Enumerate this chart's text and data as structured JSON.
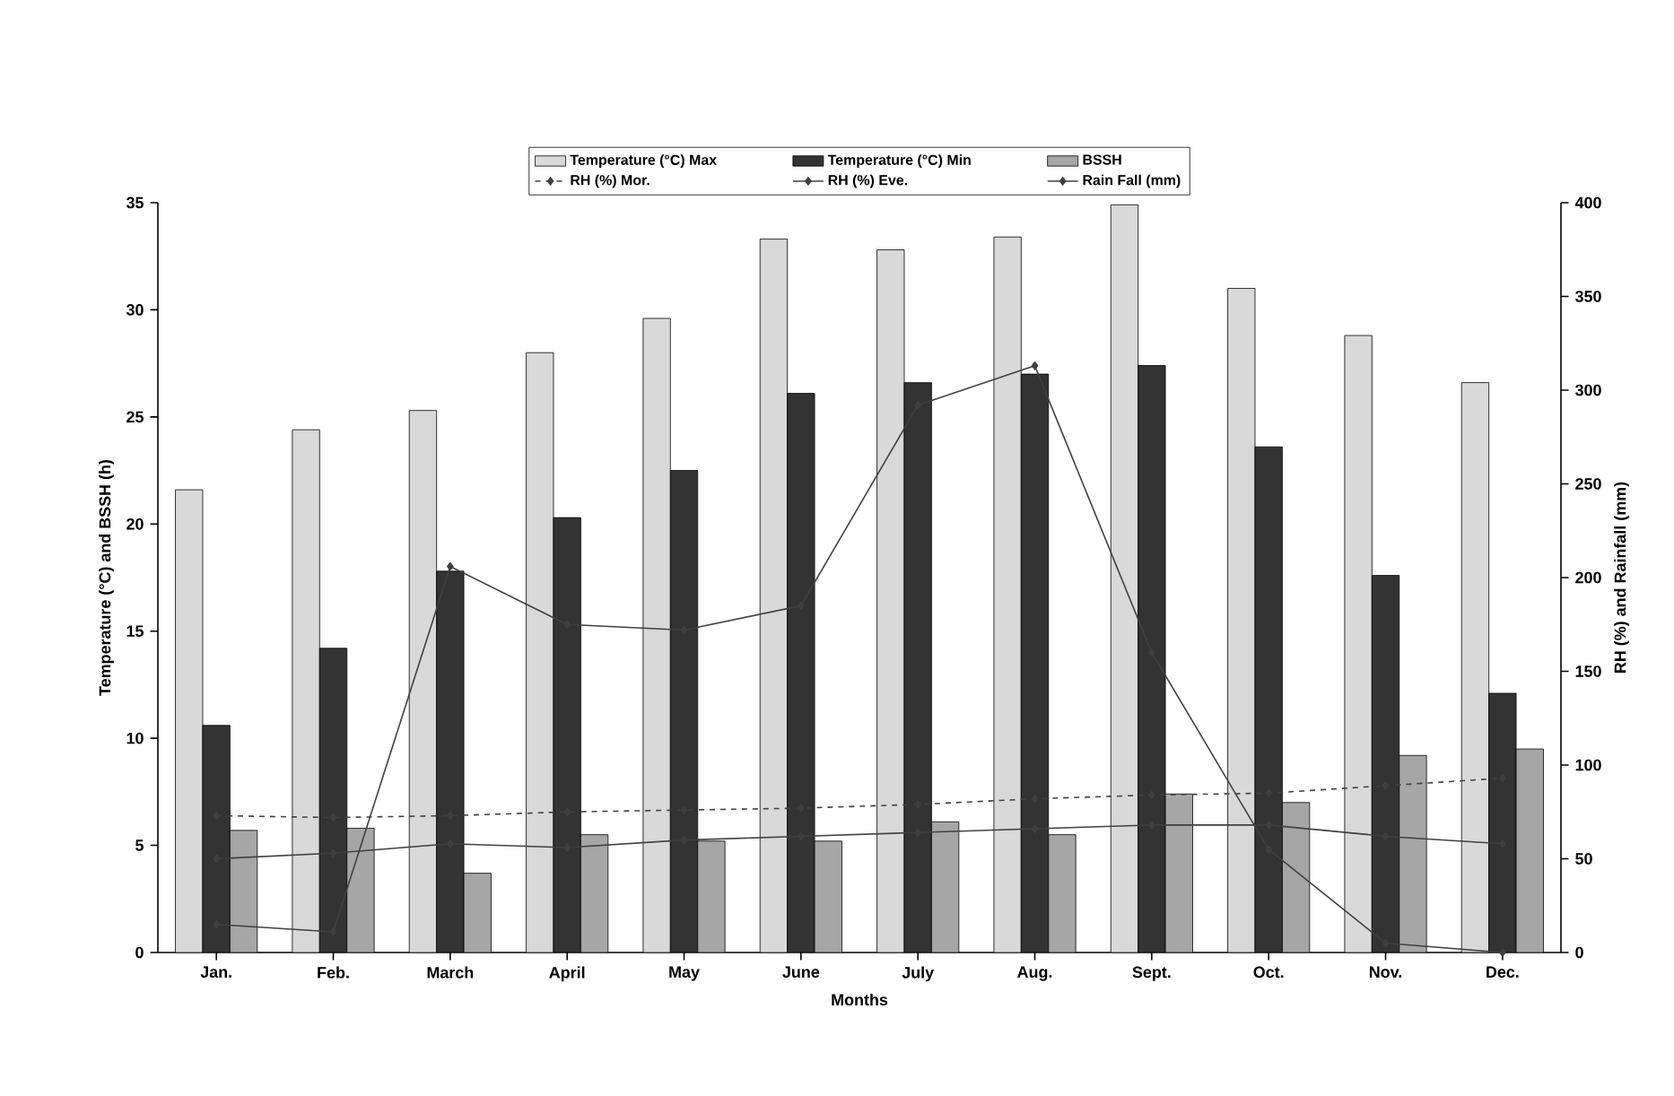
{
  "chart_data": {
    "type": "bar",
    "xlabel": "Months",
    "ylabel": "Temperature (°C) and BSSH (h)",
    "y2label": "RH (%) and Rainfall (mm)",
    "categories": [
      "Jan.",
      "Feb.",
      "March",
      "April",
      "May",
      "June",
      "July",
      "Aug.",
      "Sept.",
      "Oct.",
      "Nov.",
      "Dec."
    ],
    "series": [
      {
        "name": "Temperature (°C) Max",
        "color": "#d9d9d9",
        "values": [
          21.6,
          24.4,
          25.3,
          28,
          29.6,
          33.3,
          32.8,
          33.4,
          34.9,
          31,
          28.8,
          26.6
        ]
      },
      {
        "name": "Temperature (°C) Min",
        "color": "#333333",
        "values": [
          10.6,
          14.2,
          17.8,
          20.3,
          22.5,
          26.1,
          26.6,
          27,
          27.4,
          23.6,
          17.6,
          12.1
        ]
      },
      {
        "name": "BSSH",
        "color": "#a6a6a6",
        "values": [
          5.7,
          5.8,
          3.7,
          5.5,
          5.2,
          5.2,
          6.1,
          5.5,
          7.4,
          7,
          9.2,
          9.5
        ]
      },
      {
        "name": "RH (%) Mor.",
        "type": "line",
        "axis": "y2",
        "color": "#404040",
        "line_style": "dashed",
        "values": [
          73,
          72,
          73,
          75,
          76,
          77,
          79,
          82,
          84,
          85,
          89,
          93
        ]
      },
      {
        "name": "RH (%) Eve.",
        "type": "line",
        "axis": "y2",
        "color": "#404040",
        "line_style": "solid",
        "values": [
          50,
          53,
          58,
          56,
          60,
          62,
          64,
          66,
          68,
          68,
          62,
          58
        ]
      },
      {
        "name": "Rain Fall (mm)",
        "type": "line",
        "axis": "y2",
        "color": "#404040",
        "line_style": "solid",
        "values": [
          15,
          11,
          206,
          175,
          172,
          185,
          292,
          313,
          160,
          55,
          5,
          0
        ]
      }
    ],
    "ylim": [
      0,
      35
    ],
    "yticks": [
      0,
      5,
      10,
      15,
      20,
      25,
      30,
      35
    ],
    "y2lim": [
      0,
      400
    ],
    "y2ticks": [
      0,
      50,
      100,
      150,
      200,
      250,
      300,
      350,
      400
    ],
    "marker": "diamond",
    "grid": false,
    "legend": "top"
  }
}
